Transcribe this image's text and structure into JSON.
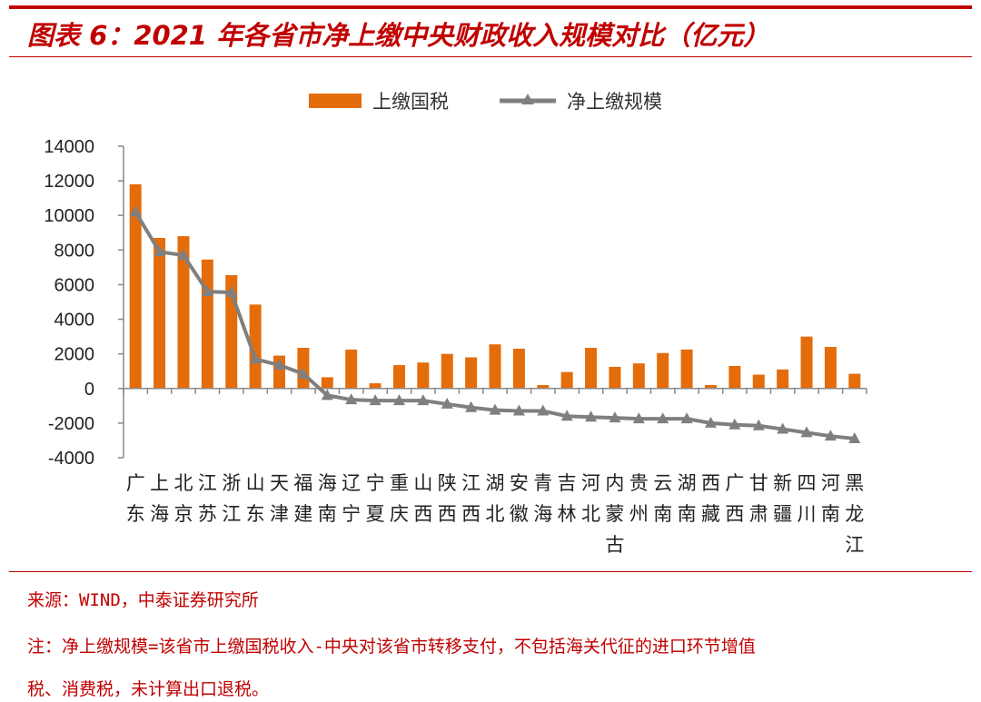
{
  "header": {
    "title": "图表 6：2021 年各省市净上缴中央财政收入规模对比（亿元）"
  },
  "footer": {
    "source": "来源：WIND，中泰证券研究所",
    "note_line1": "注：净上缴规模=该省市上缴国税收入-中央对该省市转移支付，不包括海关代征的进口环节增值",
    "note_line2": "税、消费税，未计算出口退税。"
  },
  "chart_data": {
    "type": "bar",
    "title": "",
    "xlabel": "",
    "ylabel": "",
    "ylim": [
      -4000,
      14000
    ],
    "yticks": [
      -4000,
      -2000,
      0,
      2000,
      4000,
      6000,
      8000,
      10000,
      12000,
      14000
    ],
    "grid": false,
    "legend_position": "top-center",
    "categories": [
      "广东",
      "上海",
      "北京",
      "江苏",
      "浙江",
      "山东",
      "天津",
      "福建",
      "海南",
      "辽宁",
      "宁夏",
      "重庆",
      "山西",
      "陕西",
      "江西",
      "湖北",
      "安徽",
      "青海",
      "吉林",
      "河北",
      "内蒙古",
      "贵州",
      "云南",
      "湖南",
      "西藏",
      "广西",
      "甘肃",
      "新疆",
      "四川",
      "河南",
      "黑龙江"
    ],
    "series": [
      {
        "name": "上缴国税",
        "type": "bar",
        "color": "#e46c0a",
        "values": [
          11800,
          8700,
          8800,
          7450,
          6550,
          4850,
          1900,
          2350,
          650,
          2250,
          300,
          1350,
          1500,
          2000,
          1800,
          2550,
          2300,
          200,
          950,
          2350,
          1250,
          1450,
          2050,
          2250,
          200,
          1300,
          800,
          1100,
          3000,
          2400,
          850
        ]
      },
      {
        "name": "净上缴规模",
        "type": "line",
        "color": "#7f7f7f",
        "marker": "triangle",
        "values": [
          10200,
          7900,
          7700,
          5600,
          5550,
          1700,
          1350,
          850,
          -400,
          -650,
          -700,
          -700,
          -700,
          -900,
          -1100,
          -1250,
          -1300,
          -1300,
          -1600,
          -1650,
          -1700,
          -1750,
          -1750,
          -1750,
          -2000,
          -2100,
          -2150,
          -2350,
          -2550,
          -2750,
          -2900
        ]
      }
    ]
  }
}
